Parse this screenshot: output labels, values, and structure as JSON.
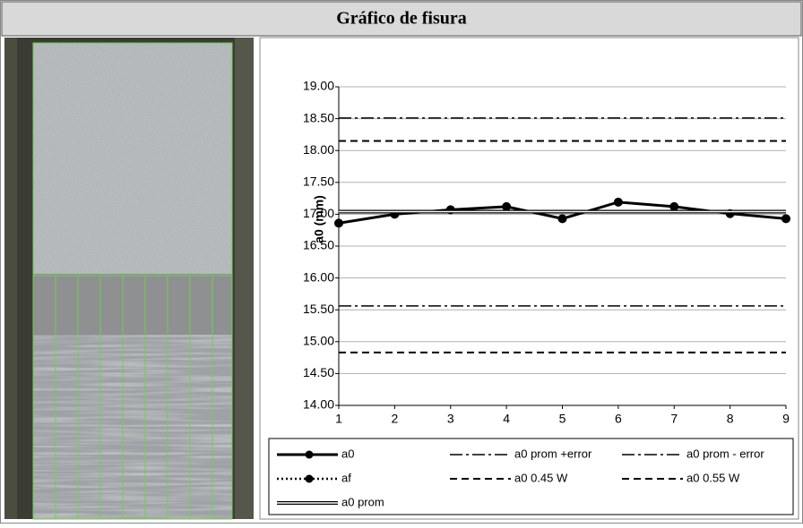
{
  "chart_data": {
    "type": "line",
    "title": "Gráfico de fisura",
    "ylabel": "a0 (mm)",
    "x": [
      1,
      2,
      3,
      4,
      5,
      6,
      7,
      8,
      9
    ],
    "xlim": [
      1,
      9
    ],
    "xticks": [
      1,
      2,
      3,
      4,
      5,
      6,
      7,
      8,
      9
    ],
    "ylim": [
      14,
      19
    ],
    "yticks": [
      {
        "value": 14,
        "label": "14.00"
      },
      {
        "value": 14.5,
        "label": "14.50"
      },
      {
        "value": 15,
        "label": "15.00"
      },
      {
        "value": 15.5,
        "label": "15.50"
      },
      {
        "value": 16,
        "label": "16.00"
      },
      {
        "value": 16.5,
        "label": "16.50"
      },
      {
        "value": 17,
        "label": "17.00"
      },
      {
        "value": 17.5,
        "label": "17.50"
      },
      {
        "value": 18,
        "label": "18.00"
      },
      {
        "value": 18.5,
        "label": "18.50"
      },
      {
        "value": 19,
        "label": "19.00"
      }
    ],
    "grid": true,
    "series": [
      {
        "name": "a0",
        "color": "#000000",
        "style": "solid",
        "marker": "circle",
        "values": [
          16.86,
          17.0,
          17.07,
          17.12,
          16.93,
          17.19,
          17.12,
          17.01,
          16.93
        ]
      },
      {
        "name": "a0 prom +error",
        "color": "#000000",
        "style": "dashdot",
        "values": [
          18.51,
          18.51,
          18.51,
          18.51,
          18.51,
          18.51,
          18.51,
          18.51,
          18.51
        ]
      },
      {
        "name": "a0 prom - error",
        "color": "#000000",
        "style": "dashdot",
        "values": [
          15.56,
          15.56,
          15.56,
          15.56,
          15.56,
          15.56,
          15.56,
          15.56,
          15.56
        ]
      },
      {
        "name": "af",
        "color": "#000000",
        "style": "dotted",
        "marker": "circle",
        "values": [
          null,
          null,
          null,
          null,
          null,
          null,
          null,
          null,
          null
        ]
      },
      {
        "name": "a0 0.45 W",
        "color": "#000000",
        "style": "dashed",
        "values": [
          14.83,
          14.83,
          14.83,
          14.83,
          14.83,
          14.83,
          14.83,
          14.83,
          14.83
        ]
      },
      {
        "name": "a0 0.55 W",
        "color": "#000000",
        "style": "dashed",
        "values": [
          18.15,
          18.15,
          18.15,
          18.15,
          18.15,
          18.15,
          18.15,
          18.15,
          18.15
        ]
      },
      {
        "name": "a0 prom",
        "color": "#000000",
        "style": "double",
        "values": [
          17.04,
          17.04,
          17.04,
          17.04,
          17.04,
          17.04,
          17.04,
          17.04,
          17.04
        ]
      }
    ]
  }
}
